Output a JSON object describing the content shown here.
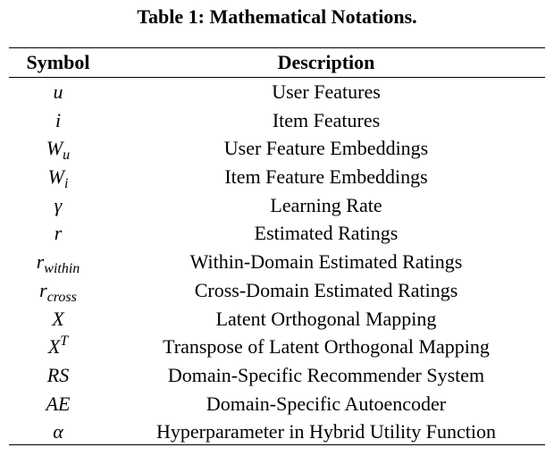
{
  "caption": "Table 1: Mathematical Notations.",
  "header": {
    "symbol": "Symbol",
    "description": "Description"
  },
  "rows": [
    {
      "symbol": "u",
      "description": "User Features"
    },
    {
      "symbol": "i",
      "description": "Item Features"
    },
    {
      "symbol": "W",
      "symbol_sub": "u",
      "description": "User Feature Embeddings"
    },
    {
      "symbol": "W",
      "symbol_sub": "i",
      "description": "Item Feature Embeddings"
    },
    {
      "symbol": "γ",
      "description": "Learning Rate"
    },
    {
      "symbol": "r",
      "description": "Estimated Ratings"
    },
    {
      "symbol": "r",
      "symbol_sub": "within",
      "description": "Within-Domain Estimated Ratings"
    },
    {
      "symbol": "r",
      "symbol_sub": "cross",
      "description": "Cross-Domain Estimated Ratings"
    },
    {
      "symbol": "X",
      "description": "Latent Orthogonal Mapping"
    },
    {
      "symbol": "X",
      "symbol_sup": "T",
      "description": "Transpose of Latent Orthogonal Mapping"
    },
    {
      "symbol": "RS",
      "description": "Domain-Specific Recommender System"
    },
    {
      "symbol": "AE",
      "description": "Domain-Specific Autoencoder"
    },
    {
      "symbol": "α",
      "description": "Hyperparameter in Hybrid Utility Function"
    }
  ]
}
